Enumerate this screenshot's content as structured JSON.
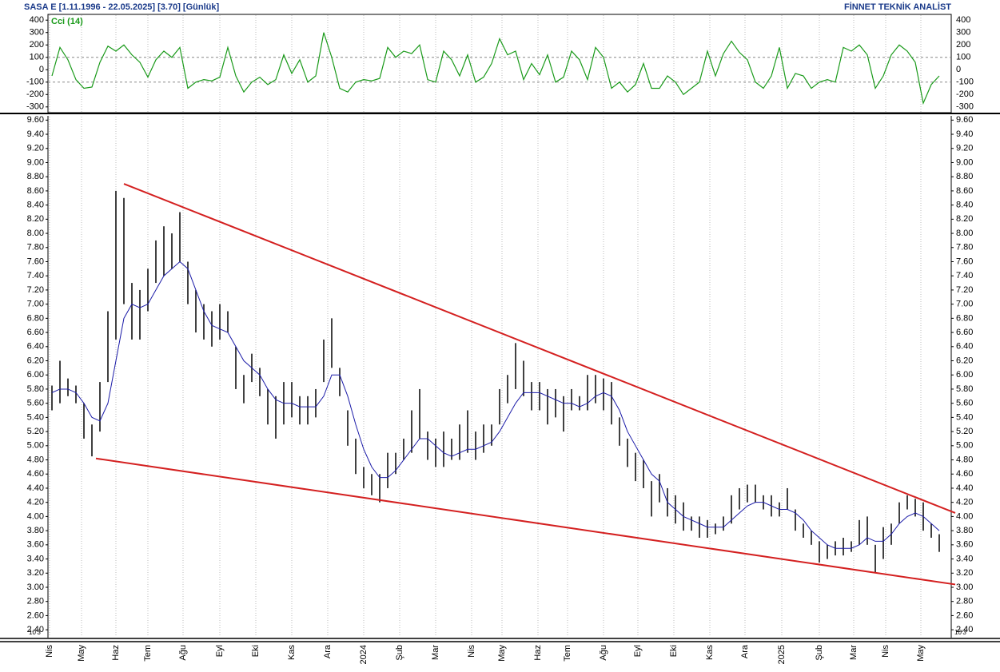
{
  "header": {
    "title": "SASA  E  [1.11.1996 - 22.05.2025]  [3.70]  [Günlük]",
    "brand": "FİNNET TEKNİK ANALİST",
    "scale_left": "10'3",
    "scale_right": "10'3"
  },
  "chart_data": [
    {
      "type": "line",
      "title": "Cci (14)",
      "color": "#1a9a1a",
      "ylim": [
        -340,
        440
      ],
      "yticks": [
        400,
        300,
        200,
        100,
        0,
        -100,
        -200,
        -300
      ],
      "reference_lines": [
        100,
        -100
      ],
      "x": [
        0,
        1,
        2,
        3,
        4,
        5,
        6,
        7,
        8,
        9,
        10,
        11,
        12,
        13,
        14,
        15,
        16,
        17,
        18,
        19,
        20,
        21,
        22,
        23,
        24,
        25,
        26,
        27,
        28,
        29,
        30,
        31,
        32,
        33,
        34,
        35,
        36,
        37,
        38,
        39,
        40,
        41,
        42,
        43,
        44,
        45,
        46,
        47,
        48,
        49,
        50,
        51,
        52,
        53,
        54,
        55,
        56,
        57,
        58,
        59,
        60,
        61,
        62,
        63,
        64,
        65,
        66,
        67,
        68,
        69,
        70,
        71,
        72,
        73,
        74,
        75,
        76,
        77,
        78,
        79,
        80,
        81,
        82,
        83,
        84,
        85,
        86,
        87,
        88,
        89,
        90,
        91,
        92,
        93,
        94,
        95,
        96,
        97,
        98,
        99,
        100,
        101,
        102,
        103,
        104,
        105,
        106,
        107,
        108,
        109,
        110,
        111
      ],
      "values": [
        -50,
        180,
        80,
        -80,
        -150,
        -140,
        60,
        190,
        150,
        200,
        120,
        60,
        -60,
        80,
        150,
        100,
        180,
        -150,
        -100,
        -80,
        -90,
        -60,
        180,
        -50,
        -180,
        -100,
        -60,
        -120,
        -80,
        120,
        -30,
        80,
        -100,
        -50,
        300,
        100,
        -150,
        -180,
        -100,
        -80,
        -90,
        -70,
        180,
        100,
        150,
        130,
        200,
        -80,
        -100,
        150,
        80,
        -50,
        120,
        -100,
        -60,
        50,
        250,
        120,
        150,
        -80,
        50,
        -40,
        120,
        -100,
        -60,
        150,
        80,
        -80,
        180,
        100,
        -150,
        -100,
        -180,
        -120,
        50,
        -150,
        -150,
        -50,
        -100,
        -200,
        -150,
        -100,
        150,
        -50,
        130,
        230,
        140,
        80,
        -100,
        -150,
        -50,
        180,
        -150,
        -30,
        -50,
        -150,
        -100,
        -80,
        -100,
        180,
        150,
        200,
        120,
        -150,
        -50,
        120,
        200,
        150,
        60,
        -270,
        -120,
        -50
      ]
    },
    {
      "type": "hlc",
      "color": "#111111",
      "ylim": [
        2.3,
        9.66
      ],
      "xlim": [
        -0.5,
        112.5
      ],
      "yticks": [
        {
          "value": 9.6,
          "label": "9.60"
        },
        {
          "value": 9.4,
          "label": "9.40"
        },
        {
          "value": 9.2,
          "label": "9.20"
        },
        {
          "value": 9.0,
          "label": "9.00"
        },
        {
          "value": 8.8,
          "label": "8.80"
        },
        {
          "value": 8.6,
          "label": "8.60"
        },
        {
          "value": 8.4,
          "label": "8.40"
        },
        {
          "value": 8.2,
          "label": "8.20"
        },
        {
          "value": 8.0,
          "label": "8.00"
        },
        {
          "value": 7.8,
          "label": "7.80"
        },
        {
          "value": 7.6,
          "label": "7.60"
        },
        {
          "value": 7.4,
          "label": "7.40"
        },
        {
          "value": 7.2,
          "label": "7.20"
        },
        {
          "value": 7.0,
          "label": "7.00"
        },
        {
          "value": 6.8,
          "label": "6.80"
        },
        {
          "value": 6.6,
          "label": "6.60"
        },
        {
          "value": 6.4,
          "label": "6.40"
        },
        {
          "value": 6.2,
          "label": "6.20"
        },
        {
          "value": 6.0,
          "label": "6.00"
        },
        {
          "value": 5.8,
          "label": "5.80"
        },
        {
          "value": 5.6,
          "label": "5.60"
        },
        {
          "value": 5.4,
          "label": "5.40"
        },
        {
          "value": 5.2,
          "label": "5.20"
        },
        {
          "value": 5.0,
          "label": "5.00"
        },
        {
          "value": 4.8,
          "label": "4.80"
        },
        {
          "value": 4.6,
          "label": "4.60"
        },
        {
          "value": 4.4,
          "label": "4.40"
        },
        {
          "value": 4.2,
          "label": "4.20"
        },
        {
          "value": 4.0,
          "label": "4.00"
        },
        {
          "value": 3.8,
          "label": "3.80"
        },
        {
          "value": 3.6,
          "label": "3.60"
        },
        {
          "value": 3.4,
          "label": "3.40"
        },
        {
          "value": 3.2,
          "label": "3.20"
        },
        {
          "value": 3.0,
          "label": "3.00"
        },
        {
          "value": 2.8,
          "label": "2.80"
        },
        {
          "value": 2.6,
          "label": "2.60"
        },
        {
          "value": 2.4,
          "label": "2.40"
        }
      ],
      "xticks": [
        {
          "value": -0.3,
          "label": "Nis"
        },
        {
          "value": 3.7,
          "label": "May"
        },
        {
          "value": 8,
          "label": "Haz"
        },
        {
          "value": 12,
          "label": "Tem"
        },
        {
          "value": 16.4,
          "label": "Ağu"
        },
        {
          "value": 21,
          "label": "Eyl"
        },
        {
          "value": 25.5,
          "label": "Eki"
        },
        {
          "value": 30,
          "label": "Kas"
        },
        {
          "value": 34.5,
          "label": "Ara"
        },
        {
          "value": 39,
          "label": "2024"
        },
        {
          "value": 43.5,
          "label": "Şub"
        },
        {
          "value": 48,
          "label": "Mar"
        },
        {
          "value": 52.5,
          "label": "Nis"
        },
        {
          "value": 56.3,
          "label": "May"
        },
        {
          "value": 60.8,
          "label": "Haz"
        },
        {
          "value": 64.5,
          "label": "Tem"
        },
        {
          "value": 69,
          "label": "Ağu"
        },
        {
          "value": 73.3,
          "label": "Eyl"
        },
        {
          "value": 77.8,
          "label": "Eki"
        },
        {
          "value": 82.3,
          "label": "Kas"
        },
        {
          "value": 86.7,
          "label": "Ara"
        },
        {
          "value": 91.3,
          "label": "2025"
        },
        {
          "value": 96,
          "label": "Şub"
        },
        {
          "value": 100.3,
          "label": "Mar"
        },
        {
          "value": 104.3,
          "label": "Nis"
        },
        {
          "value": 108.7,
          "label": "May"
        }
      ],
      "x": [
        0,
        1,
        2,
        3,
        4,
        5,
        6,
        7,
        8,
        9,
        10,
        11,
        12,
        13,
        14,
        15,
        16,
        17,
        18,
        19,
        20,
        21,
        22,
        23,
        24,
        25,
        26,
        27,
        28,
        29,
        30,
        31,
        32,
        33,
        34,
        35,
        36,
        37,
        38,
        39,
        40,
        41,
        42,
        43,
        44,
        45,
        46,
        47,
        48,
        49,
        50,
        51,
        52,
        53,
        54,
        55,
        56,
        57,
        58,
        59,
        60,
        61,
        62,
        63,
        64,
        65,
        66,
        67,
        68,
        69,
        70,
        71,
        72,
        73,
        74,
        75,
        76,
        77,
        78,
        79,
        80,
        81,
        82,
        83,
        84,
        85,
        86,
        87,
        88,
        89,
        90,
        91,
        92,
        93,
        94,
        95,
        96,
        97,
        98,
        99,
        100,
        101,
        102,
        103,
        104,
        105,
        106,
        107,
        108,
        109,
        110,
        111
      ],
      "lows": [
        5.5,
        5.6,
        5.7,
        5.6,
        5.1,
        4.85,
        5.2,
        5.9,
        6.5,
        7.0,
        6.5,
        6.5,
        6.9,
        7.3,
        7.4,
        7.5,
        7.6,
        7.0,
        6.6,
        6.5,
        6.4,
        6.5,
        6.6,
        5.8,
        5.6,
        5.9,
        5.7,
        5.3,
        5.1,
        5.3,
        5.4,
        5.3,
        5.3,
        5.4,
        5.9,
        6.1,
        5.7,
        5.0,
        4.6,
        4.4,
        4.3,
        4.2,
        4.4,
        4.6,
        4.8,
        4.9,
        5.1,
        4.8,
        4.7,
        4.7,
        4.8,
        4.8,
        4.9,
        4.8,
        4.9,
        5.0,
        5.3,
        5.6,
        5.8,
        5.7,
        5.5,
        5.5,
        5.3,
        5.4,
        5.2,
        5.5,
        5.5,
        5.5,
        5.6,
        5.5,
        5.3,
        5.0,
        4.7,
        4.5,
        4.4,
        4.0,
        4.2,
        4.0,
        3.9,
        3.8,
        3.8,
        3.7,
        3.7,
        3.75,
        3.8,
        3.9,
        4.1,
        4.2,
        4.2,
        4.1,
        4.0,
        4.0,
        4.1,
        3.8,
        3.7,
        3.6,
        3.35,
        3.4,
        3.45,
        3.45,
        3.5,
        3.6,
        3.6,
        3.2,
        3.4,
        3.6,
        3.9,
        4.1,
        4.0,
        3.8,
        3.7,
        3.5
      ],
      "highs": [
        5.85,
        6.2,
        5.95,
        5.85,
        5.6,
        5.3,
        5.9,
        6.9,
        8.6,
        8.5,
        7.3,
        7.2,
        7.5,
        7.9,
        8.1,
        8.0,
        8.3,
        7.6,
        7.2,
        7.0,
        6.9,
        7.0,
        6.9,
        6.4,
        6.0,
        6.3,
        6.1,
        5.8,
        5.7,
        5.9,
        5.9,
        5.7,
        5.7,
        5.8,
        6.5,
        6.8,
        6.1,
        5.5,
        5.1,
        4.7,
        4.6,
        4.6,
        4.9,
        4.9,
        5.1,
        5.5,
        5.8,
        5.2,
        5.1,
        5.2,
        5.1,
        5.3,
        5.5,
        5.2,
        5.3,
        5.3,
        5.8,
        6.0,
        6.45,
        6.2,
        5.9,
        5.9,
        5.8,
        5.8,
        5.7,
        5.8,
        5.7,
        6.0,
        6.0,
        5.95,
        5.9,
        5.4,
        5.1,
        4.9,
        4.8,
        4.5,
        4.6,
        4.4,
        4.3,
        4.2,
        4.0,
        4.0,
        3.95,
        3.9,
        4.0,
        4.3,
        4.4,
        4.45,
        4.45,
        4.3,
        4.3,
        4.2,
        4.4,
        4.1,
        3.9,
        3.8,
        3.65,
        3.6,
        3.65,
        3.7,
        3.65,
        3.95,
        4.0,
        3.6,
        3.85,
        3.9,
        4.2,
        4.3,
        4.25,
        4.2,
        3.9,
        3.75
      ],
      "ma": {
        "color": "#1c1ca8",
        "values": [
          5.75,
          5.8,
          5.8,
          5.75,
          5.6,
          5.4,
          5.35,
          5.6,
          6.2,
          6.8,
          7.0,
          6.95,
          7.0,
          7.2,
          7.4,
          7.5,
          7.6,
          7.5,
          7.2,
          6.9,
          6.7,
          6.65,
          6.6,
          6.4,
          6.2,
          6.1,
          6.0,
          5.8,
          5.65,
          5.6,
          5.6,
          5.55,
          5.55,
          5.55,
          5.7,
          6.0,
          6.0,
          5.7,
          5.3,
          4.95,
          4.7,
          4.55,
          4.55,
          4.65,
          4.8,
          4.95,
          5.1,
          5.1,
          5.0,
          4.9,
          4.85,
          4.9,
          4.95,
          4.95,
          5.0,
          5.05,
          5.2,
          5.4,
          5.6,
          5.75,
          5.75,
          5.75,
          5.7,
          5.65,
          5.6,
          5.6,
          5.55,
          5.6,
          5.7,
          5.75,
          5.7,
          5.5,
          5.2,
          5.0,
          4.8,
          4.6,
          4.5,
          4.2,
          4.1,
          4.0,
          3.95,
          3.9,
          3.85,
          3.85,
          3.85,
          3.95,
          4.05,
          4.15,
          4.2,
          4.2,
          4.15,
          4.1,
          4.1,
          4.05,
          3.95,
          3.8,
          3.7,
          3.6,
          3.55,
          3.55,
          3.55,
          3.6,
          3.7,
          3.65,
          3.65,
          3.75,
          3.9,
          4.0,
          4.05,
          4.0,
          3.9,
          3.8
        ]
      },
      "trendlines": [
        {
          "color": "#d42020",
          "x": [
            9,
            113
          ],
          "y": [
            8.7,
            4.05
          ]
        },
        {
          "color": "#d42020",
          "x": [
            5.5,
            113
          ],
          "y": [
            4.82,
            3.04
          ]
        }
      ]
    }
  ]
}
